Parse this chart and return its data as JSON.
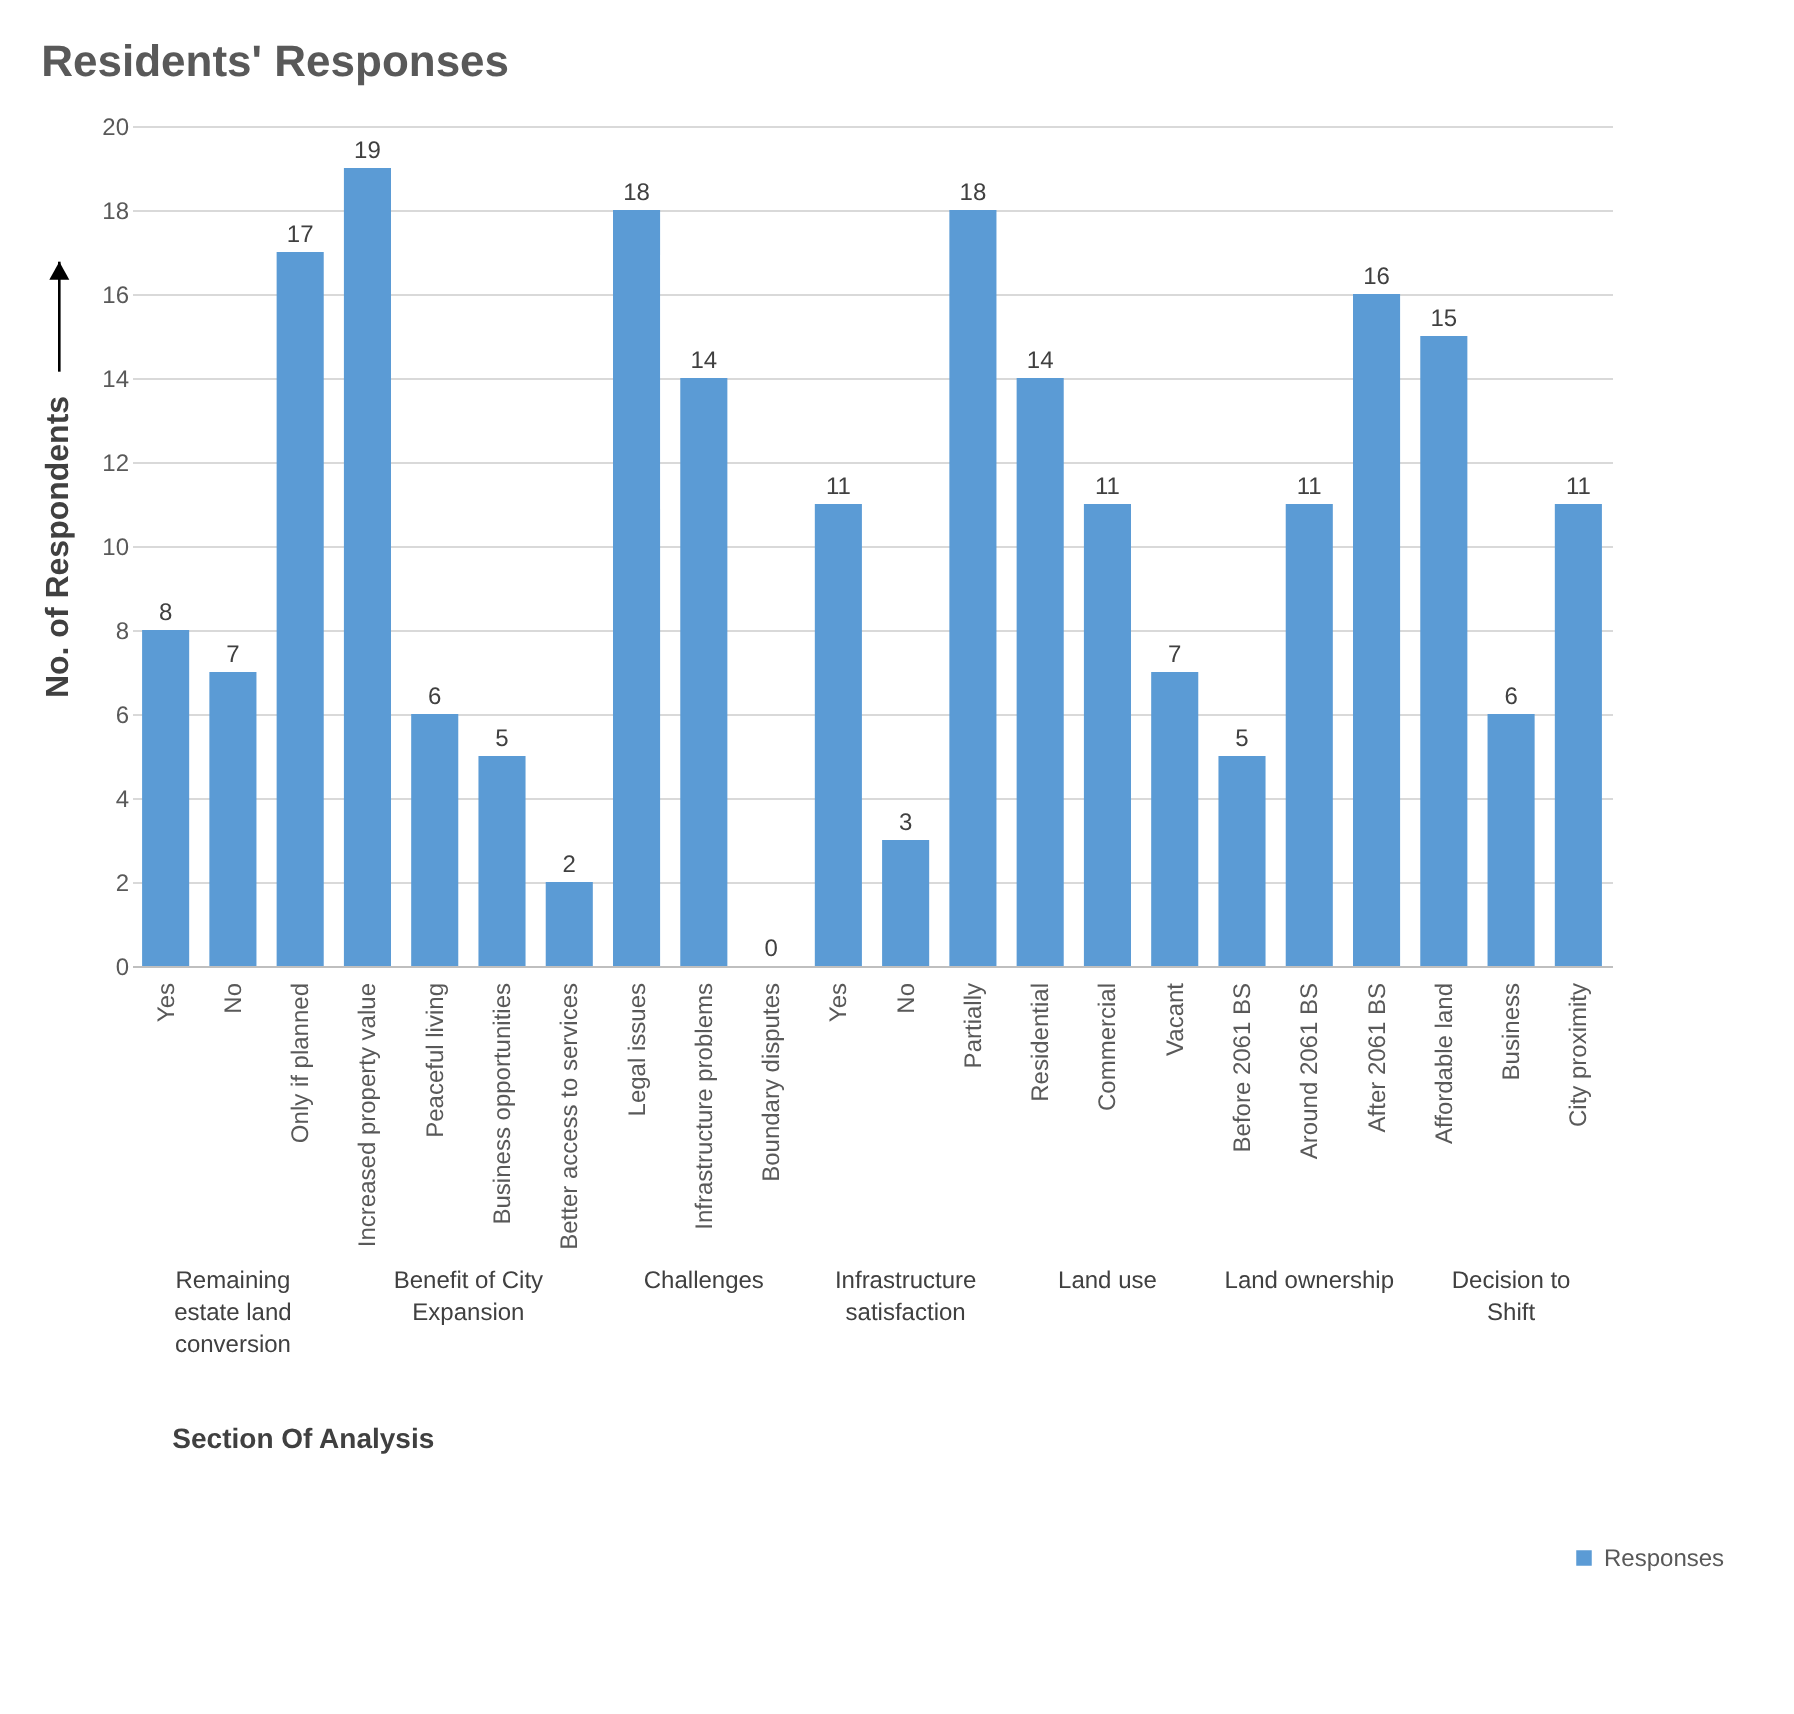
{
  "chart_data": {
    "type": "bar",
    "title": "Residents' Responses",
    "ylabel": "No. of Respondents",
    "categories": [
      "Yes",
      "No",
      "Only if planned",
      "Increased property value",
      "Peaceful living",
      "Business opportunities",
      "Better access to services",
      "Legal issues",
      "Infrastructure problems",
      "Boundary disputes",
      "Yes",
      "No",
      "Partially",
      "Residential",
      "Commercial",
      "Vacant",
      "Before 2061 BS",
      "Around 2061 BS",
      "After 2061 BS",
      "Affordable land",
      "Business",
      "City proximity"
    ],
    "series": [
      {
        "name": "Responses",
        "color": "#5b9bd5",
        "values": [
          8,
          7,
          17,
          19,
          6,
          5,
          2,
          18,
          14,
          0,
          11,
          3,
          18,
          14,
          11,
          7,
          5,
          11,
          16,
          15,
          6,
          11
        ]
      }
    ],
    "annotations": [
      "Remaining estate land conversion",
      "Benefit of City Expansion",
      "Challenges",
      "Infrastructure satisfaction",
      "Land use",
      "Land ownership",
      "Decision to Shift",
      "Section Of Analysis"
    ],
    "ylim": [
      0,
      20
    ],
    "yticks": [
      0,
      2,
      4,
      6,
      8,
      10,
      12,
      14,
      16,
      18,
      20
    ],
    "grid": "y",
    "legend": "bottom right",
    "data_labels": true
  }
}
